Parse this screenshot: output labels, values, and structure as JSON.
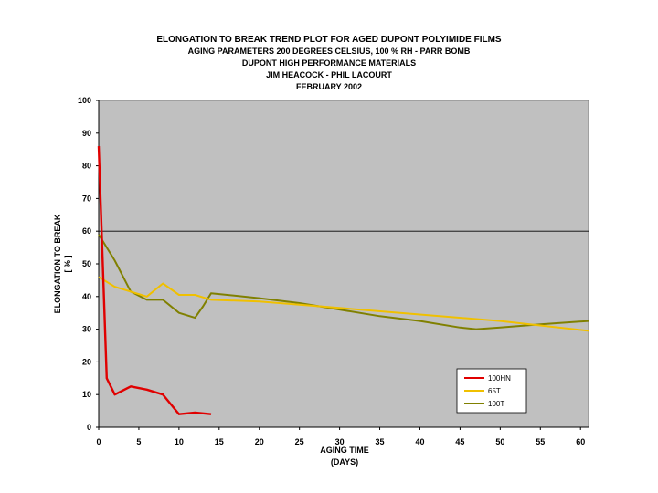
{
  "chart_data": {
    "type": "line",
    "title_lines": [
      "ELONGATION TO BREAK TREND PLOT FOR AGED DUPONT POLYIMIDE FILMS",
      "AGING PARAMETERS 200 DEGREES CELSIUS, 100 % RH - PARR BOMB",
      "DUPONT HIGH PERFORMANCE MATERIALS",
      "JIM HEACOCK - PHIL LACOURT",
      "FEBRUARY 2002"
    ],
    "xlabel_lines": [
      "AGING TIME",
      "(DAYS)"
    ],
    "ylabel_lines": [
      "ELONGATION TO BREAK",
      "[ % ]"
    ],
    "xlim": [
      0,
      61
    ],
    "ylim": [
      0,
      100
    ],
    "xticks": [
      0,
      5,
      10,
      15,
      20,
      25,
      30,
      35,
      40,
      45,
      50,
      55,
      60
    ],
    "yticks": [
      0,
      10,
      20,
      30,
      40,
      50,
      60,
      70,
      80,
      90,
      100
    ],
    "reference_line_y": 60,
    "plot_background": "#c0c0c0",
    "legend_position": "bottom-right",
    "series": [
      {
        "name": "100HN",
        "color": "#e00000",
        "x": [
          0,
          0.3,
          1,
          2,
          4,
          6,
          8,
          10,
          12,
          14
        ],
        "y": [
          86,
          65,
          15,
          10,
          12.5,
          11.5,
          10,
          4,
          4.5,
          4
        ]
      },
      {
        "name": "65T",
        "color": "#f0c000",
        "x": [
          0,
          2,
          4,
          6,
          8,
          10,
          12,
          14,
          20,
          30,
          40,
          50,
          61
        ],
        "y": [
          46,
          43,
          41.5,
          40,
          44,
          40.5,
          40.5,
          39,
          38.5,
          36.5,
          34.5,
          32.5,
          29.5
        ]
      },
      {
        "name": "100T",
        "color": "#808000",
        "x": [
          0,
          2,
          4,
          6,
          8,
          10,
          12,
          13,
          14,
          20,
          25,
          30,
          35,
          40,
          45,
          47,
          50,
          55,
          61
        ],
        "y": [
          59,
          51,
          41.5,
          39,
          39,
          35,
          33.5,
          37,
          41,
          39.5,
          38,
          36,
          34,
          32.5,
          30.5,
          30,
          30.5,
          31.5,
          32.5
        ]
      }
    ]
  }
}
